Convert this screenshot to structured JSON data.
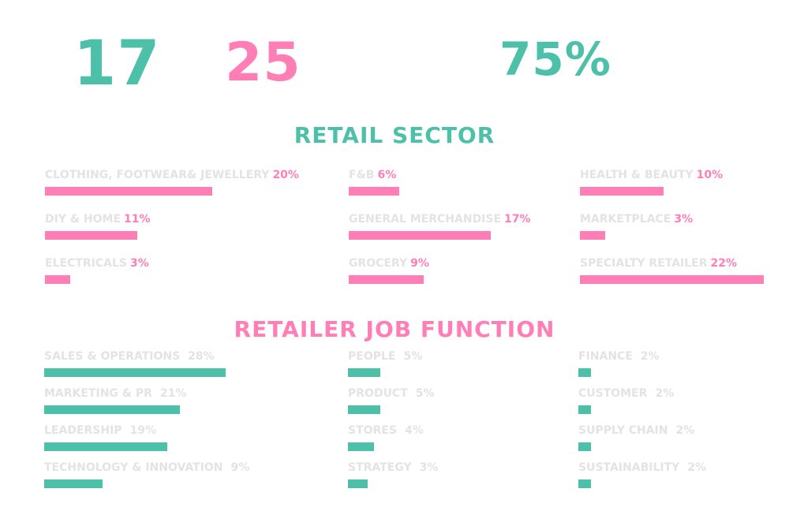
{
  "stats": [
    {
      "value": "17",
      "color": "#4cc0a8"
    },
    {
      "value": "25",
      "color": "#ff7eb6"
    },
    {
      "value": "75%",
      "color": "#4cc0a8"
    }
  ],
  "colors": {
    "teal": "#4cc0a8",
    "pink": "#ff7eb6",
    "label_grey": "#e3e3e3"
  },
  "chart_data": [
    {
      "type": "bar",
      "title": "RETAIL SECTOR",
      "categories": [
        "CLOTHING, FOOTWEAR& JEWELLERY",
        "DIY & HOME",
        "ELECTRICALS",
        "F&B",
        "GENERAL MERCHANDISE",
        "GROCERY",
        "HEALTH & BEAUTY",
        "MARKETPLACE",
        "SPECIALTY RETAILER"
      ],
      "values": [
        20,
        11,
        3,
        6,
        17,
        9,
        10,
        3,
        22
      ],
      "value_labels": [
        "20%",
        "11%",
        "3%",
        "6%",
        "17%",
        "9%",
        "10%",
        "3%",
        "22%"
      ],
      "unit": "%",
      "bar_color": "#ff7eb6"
    },
    {
      "type": "bar",
      "title": "RETAILER JOB FUNCTION",
      "categories": [
        "SALES & OPERATIONS",
        "MARKETING & PR",
        "LEADERSHIP",
        "TECHNOLOGY & INNOVATION",
        "PEOPLE",
        "PRODUCT",
        "STORES",
        "STRATEGY",
        "FINANCE",
        "CUSTOMER",
        "SUPPLY CHAIN",
        "SUSTAINABILITY"
      ],
      "values": [
        28,
        21,
        19,
        9,
        5,
        5,
        4,
        3,
        2,
        2,
        2,
        2
      ],
      "value_labels": [
        "28%",
        "21%",
        "19%",
        "9%",
        "5%",
        "5%",
        "4%",
        "3%",
        "2%",
        "2%",
        "2%",
        "2%"
      ],
      "unit": "%",
      "bar_color": "#4cc0a8"
    }
  ]
}
